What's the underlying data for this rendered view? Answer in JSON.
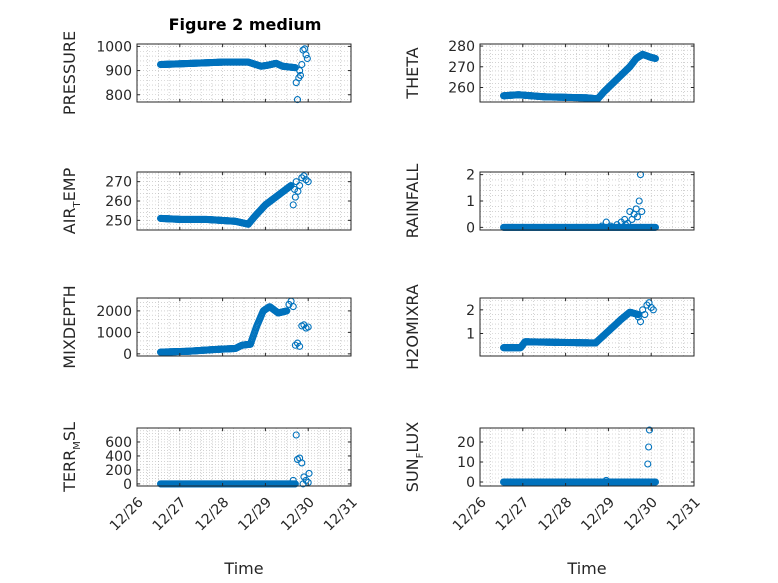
{
  "figure_title": "Figure 2 medium",
  "colors": {
    "marker": "#0072BD",
    "axis": "#262626",
    "grid": "#b8b8b8"
  },
  "chart_data": [
    {
      "id": "pressure",
      "type": "scatter",
      "ylabel": "PRESSURE",
      "ylim": [
        770,
        1010
      ],
      "yticks": [
        800,
        900,
        1000
      ],
      "ytick_labels": [
        "800",
        "900",
        "1000"
      ],
      "xlim": [
        "12/26",
        "12/31"
      ],
      "xticks": [
        "12/26",
        "12/27",
        "12/28",
        "12/29",
        "12/30",
        "12/31"
      ],
      "show_xtick_labels": false,
      "grid": "on",
      "marker": "circle",
      "segments": [
        {
          "x": [
            0.55,
            1.3,
            2.0,
            2.6,
            2.9,
            3.05,
            3.25,
            3.4
          ],
          "y": [
            925,
            930,
            935,
            935,
            918,
            922,
            930,
            918
          ],
          "n": 240
        },
        {
          "x": [
            3.4,
            3.7
          ],
          "y": [
            918,
            912
          ],
          "n": 24
        }
      ],
      "points": [
        [
          3.72,
          850
        ],
        [
          3.75,
          780
        ],
        [
          3.78,
          870
        ],
        [
          3.82,
          880
        ],
        [
          3.85,
          925
        ],
        [
          3.88,
          985
        ],
        [
          3.92,
          990
        ],
        [
          3.95,
          965
        ],
        [
          3.98,
          950
        ],
        [
          3.8,
          900
        ]
      ]
    },
    {
      "id": "theta",
      "type": "scatter",
      "ylabel": "THETA",
      "ylim": [
        253,
        281
      ],
      "yticks": [
        260,
        270,
        280
      ],
      "ytick_labels": [
        "260",
        "270",
        "280"
      ],
      "xlim": [
        "12/26",
        "12/31"
      ],
      "xticks": [
        "12/26",
        "12/27",
        "12/28",
        "12/29",
        "12/30",
        "12/31"
      ],
      "show_xtick_labels": false,
      "grid": "on",
      "marker": "circle",
      "segments": [
        {
          "x": [
            0.55,
            0.9,
            1.5,
            2.5,
            2.75
          ],
          "y": [
            256,
            256.5,
            255.5,
            255,
            254.5
          ],
          "n": 200
        },
        {
          "x": [
            2.75,
            2.9,
            3.2,
            3.5,
            3.65,
            3.8
          ],
          "y": [
            254.5,
            258,
            264,
            270,
            274,
            276
          ],
          "n": 110
        },
        {
          "x": [
            3.8,
            4.0,
            4.1
          ],
          "y": [
            276,
            274.5,
            274
          ],
          "n": 25
        }
      ],
      "points": []
    },
    {
      "id": "air_temp",
      "type": "scatter",
      "ylabel": "AIR_TEMP",
      "ylim": [
        245,
        275
      ],
      "yticks": [
        250,
        260,
        270
      ],
      "ytick_labels": [
        "250",
        "260",
        "270"
      ],
      "xlim": [
        "12/26",
        "12/31"
      ],
      "xticks": [
        "12/26",
        "12/27",
        "12/28",
        "12/29",
        "12/30",
        "12/31"
      ],
      "show_xtick_labels": false,
      "grid": "on",
      "marker": "circle",
      "segments": [
        {
          "x": [
            0.55,
            1.0,
            1.6,
            2.3,
            2.6
          ],
          "y": [
            251,
            250.5,
            250.5,
            249.5,
            248
          ],
          "n": 190
        },
        {
          "x": [
            2.6,
            2.75,
            3.0,
            3.3,
            3.6
          ],
          "y": [
            248,
            252,
            258,
            263,
            268
          ],
          "n": 110
        }
      ],
      "points": [
        [
          3.65,
          258
        ],
        [
          3.68,
          266
        ],
        [
          3.72,
          270
        ],
        [
          3.76,
          265
        ],
        [
          3.8,
          268
        ],
        [
          3.85,
          272
        ],
        [
          3.9,
          273
        ],
        [
          3.95,
          271
        ],
        [
          4.0,
          270
        ],
        [
          3.7,
          262
        ]
      ]
    },
    {
      "id": "rainfall",
      "type": "scatter",
      "ylabel": "RAINFALL",
      "ylim": [
        -0.1,
        2.1
      ],
      "yticks": [
        0,
        1,
        2
      ],
      "ytick_labels": [
        "0",
        "1",
        "2"
      ],
      "xlim": [
        "12/26",
        "12/31"
      ],
      "xticks": [
        "12/26",
        "12/27",
        "12/28",
        "12/29",
        "12/30",
        "12/31"
      ],
      "show_xtick_labels": false,
      "grid": "on",
      "marker": "circle",
      "segments": [
        {
          "x": [
            0.55,
            4.1
          ],
          "y": [
            0,
            0
          ],
          "n": 320
        }
      ],
      "points": [
        [
          2.85,
          0.05
        ],
        [
          2.95,
          0.2
        ],
        [
          3.05,
          0.05
        ],
        [
          3.2,
          0.1
        ],
        [
          3.3,
          0.2
        ],
        [
          3.38,
          0.3
        ],
        [
          3.45,
          0.15
        ],
        [
          3.5,
          0.6
        ],
        [
          3.55,
          0.3
        ],
        [
          3.6,
          0.5
        ],
        [
          3.65,
          0.7
        ],
        [
          3.68,
          0.4
        ],
        [
          3.72,
          1.0
        ],
        [
          3.75,
          2.0
        ],
        [
          3.78,
          0.6
        ],
        [
          3.4,
          0.1
        ]
      ]
    },
    {
      "id": "mixdepth",
      "type": "scatter",
      "ylabel": "MIXDEPTH",
      "ylim": [
        -100,
        2600
      ],
      "yticks": [
        0,
        1000,
        2000
      ],
      "ytick_labels": [
        "0",
        "1000",
        "2000"
      ],
      "xlim": [
        "12/26",
        "12/31"
      ],
      "xticks": [
        "12/26",
        "12/27",
        "12/28",
        "12/29",
        "12/30",
        "12/31"
      ],
      "show_xtick_labels": false,
      "grid": "on",
      "marker": "circle",
      "segments": [
        {
          "x": [
            0.55,
            1.2,
            1.8,
            2.3,
            2.45,
            2.65
          ],
          "y": [
            80,
            120,
            200,
            250,
            400,
            450
          ],
          "n": 170
        },
        {
          "x": [
            2.65,
            2.8,
            2.95,
            3.1,
            3.3,
            3.5
          ],
          "y": [
            450,
            1300,
            2000,
            2200,
            1900,
            2000
          ],
          "n": 70
        }
      ],
      "points": [
        [
          3.55,
          2300
        ],
        [
          3.6,
          2450
        ],
        [
          3.65,
          2200
        ],
        [
          3.7,
          400
        ],
        [
          3.75,
          500
        ],
        [
          3.8,
          350
        ],
        [
          3.85,
          1300
        ],
        [
          3.9,
          1350
        ],
        [
          3.95,
          1200
        ],
        [
          4.0,
          1250
        ]
      ]
    },
    {
      "id": "h2omixra",
      "type": "scatter",
      "ylabel": "H2OMIXRA",
      "ylim": [
        0.05,
        2.5
      ],
      "yticks": [
        1,
        2
      ],
      "ytick_labels": [
        "1",
        "2"
      ],
      "xlim": [
        "12/26",
        "12/31"
      ],
      "xticks": [
        "12/26",
        "12/27",
        "12/28",
        "12/29",
        "12/30",
        "12/31"
      ],
      "show_xtick_labels": false,
      "grid": "on",
      "marker": "circle",
      "segments": [
        {
          "x": [
            0.55,
            0.95,
            1.05,
            2.7
          ],
          "y": [
            0.4,
            0.4,
            0.65,
            0.6
          ],
          "n": 190
        },
        {
          "x": [
            2.7,
            3.0,
            3.3,
            3.5,
            3.7
          ],
          "y": [
            0.6,
            1.1,
            1.6,
            1.9,
            1.8
          ],
          "n": 90
        }
      ],
      "points": [
        [
          3.75,
          1.5
        ],
        [
          3.8,
          2.0
        ],
        [
          3.85,
          1.8
        ],
        [
          3.9,
          2.2
        ],
        [
          3.95,
          2.3
        ],
        [
          4.0,
          2.1
        ],
        [
          4.05,
          2.0
        ],
        [
          3.7,
          1.7
        ]
      ]
    },
    {
      "id": "terr_msl",
      "type": "scatter",
      "ylabel": "TERR_MSL",
      "ylim": [
        -30,
        800
      ],
      "yticks": [
        0,
        200,
        400,
        600
      ],
      "ytick_labels": [
        "0",
        "200",
        "400",
        "600"
      ],
      "xlim": [
        "12/26",
        "12/31"
      ],
      "xticks": [
        "12/26",
        "12/27",
        "12/28",
        "12/29",
        "12/30",
        "12/31"
      ],
      "xtick_labels": [
        "12/26",
        "12/27",
        "12/28",
        "12/29",
        "12/30",
        "12/31"
      ],
      "show_xtick_labels": true,
      "xlabel": "Time",
      "grid": "on",
      "marker": "circle",
      "segments": [
        {
          "x": [
            0.55,
            3.7
          ],
          "y": [
            0,
            0
          ],
          "n": 280
        }
      ],
      "points": [
        [
          3.65,
          50
        ],
        [
          3.72,
          700
        ],
        [
          3.75,
          350
        ],
        [
          3.8,
          370
        ],
        [
          3.85,
          300
        ],
        [
          3.9,
          100
        ],
        [
          3.95,
          50
        ],
        [
          4.0,
          20
        ],
        [
          4.02,
          150
        ],
        [
          3.88,
          0
        ]
      ]
    },
    {
      "id": "sun_flux",
      "type": "scatter",
      "ylabel": "SUN_FLUX",
      "ylim": [
        -2,
        27
      ],
      "yticks": [
        0,
        10,
        20
      ],
      "ytick_labels": [
        "0",
        "10",
        "20"
      ],
      "xlim": [
        "12/26",
        "12/31"
      ],
      "xticks": [
        "12/26",
        "12/27",
        "12/28",
        "12/29",
        "12/30",
        "12/31"
      ],
      "xtick_labels": [
        "12/26",
        "12/27",
        "12/28",
        "12/29",
        "12/30",
        "12/31"
      ],
      "show_xtick_labels": true,
      "xlabel": "Time",
      "grid": "on",
      "marker": "circle",
      "segments": [
        {
          "x": [
            0.55,
            4.1
          ],
          "y": [
            0,
            0
          ],
          "n": 320
        }
      ],
      "points": [
        [
          2.95,
          0.8
        ],
        [
          3.92,
          9
        ],
        [
          3.94,
          17.5
        ],
        [
          3.96,
          26
        ]
      ]
    }
  ]
}
